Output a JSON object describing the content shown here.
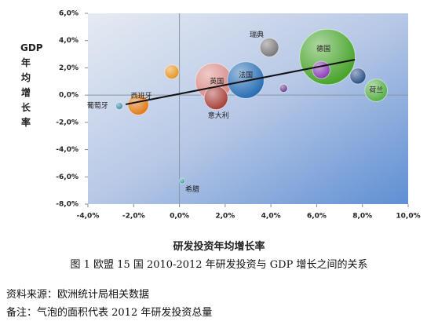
{
  "chart_data": {
    "type": "scatter",
    "bubble": true,
    "x_title": "研发投资年均增长率",
    "y_title": "GDP年均增长率",
    "caption": "图 1 欧盟 15 国 2010-2012 年研发投资与 GDP 增长之间的关系",
    "source": "资料来源：欧洲统计局相关数据",
    "note": "备注：气泡的面积代表 2012 年研发投资总量",
    "xlim": [
      -4,
      10
    ],
    "ylim": [
      -8,
      6
    ],
    "xticks": [
      {
        "value": -4,
        "label": "-4,0%"
      },
      {
        "value": -2,
        "label": "-2,0%"
      },
      {
        "value": 0,
        "label": "0,0%"
      },
      {
        "value": 2,
        "label": "2,0%"
      },
      {
        "value": 4,
        "label": "4,0%"
      },
      {
        "value": 6,
        "label": "6,0%"
      },
      {
        "value": 8,
        "label": "8,0%"
      },
      {
        "value": 10,
        "label": "10,0%"
      }
    ],
    "yticks": [
      {
        "value": -8,
        "label": "-8,0%"
      },
      {
        "value": -6,
        "label": "-6,0%"
      },
      {
        "value": -4,
        "label": "-4,0%"
      },
      {
        "value": -2,
        "label": "-2,0%"
      },
      {
        "value": 0,
        "label": "0,0%"
      },
      {
        "value": 2,
        "label": "2,0%"
      },
      {
        "value": 4,
        "label": "4,0%"
      },
      {
        "value": 6,
        "label": "6,0%"
      }
    ],
    "labels": [
      "葡萄牙",
      "西班牙",
      null,
      "英国",
      "意大利",
      "法国",
      "瑞典",
      null,
      "德国",
      null,
      null,
      "荷兰",
      "希腊"
    ],
    "x": [
      -2.63,
      -1.8,
      -0.33,
      1.5,
      1.6,
      2.9,
      3.93,
      4.55,
      6.47,
      6.2,
      7.8,
      8.6,
      0.12
    ],
    "y": [
      -0.8,
      -0.7,
      1.7,
      1.0,
      -0.2,
      1.1,
      3.5,
      0.5,
      2.8,
      1.85,
      1.4,
      0.35,
      -6.3
    ],
    "sizes": [
      2,
      17,
      8,
      53,
      22,
      53,
      14,
      2.5,
      122,
      12,
      10,
      20,
      1.2
    ],
    "colors": [
      "#3f8fa6",
      "#e07b1a",
      "#e69526",
      "#d98a86",
      "#a8413a",
      "#2a6fb4",
      "#7a7a7a",
      "#6a3f8e",
      "#4aa52e",
      "#8b3fb8",
      "#2b4f86",
      "#5ab04a",
      "#3f9aa6"
    ],
    "trendline": {
      "x": [
        -2.35,
        7.67
      ],
      "y": [
        -0.68,
        2.6
      ],
      "color": "#111"
    }
  }
}
